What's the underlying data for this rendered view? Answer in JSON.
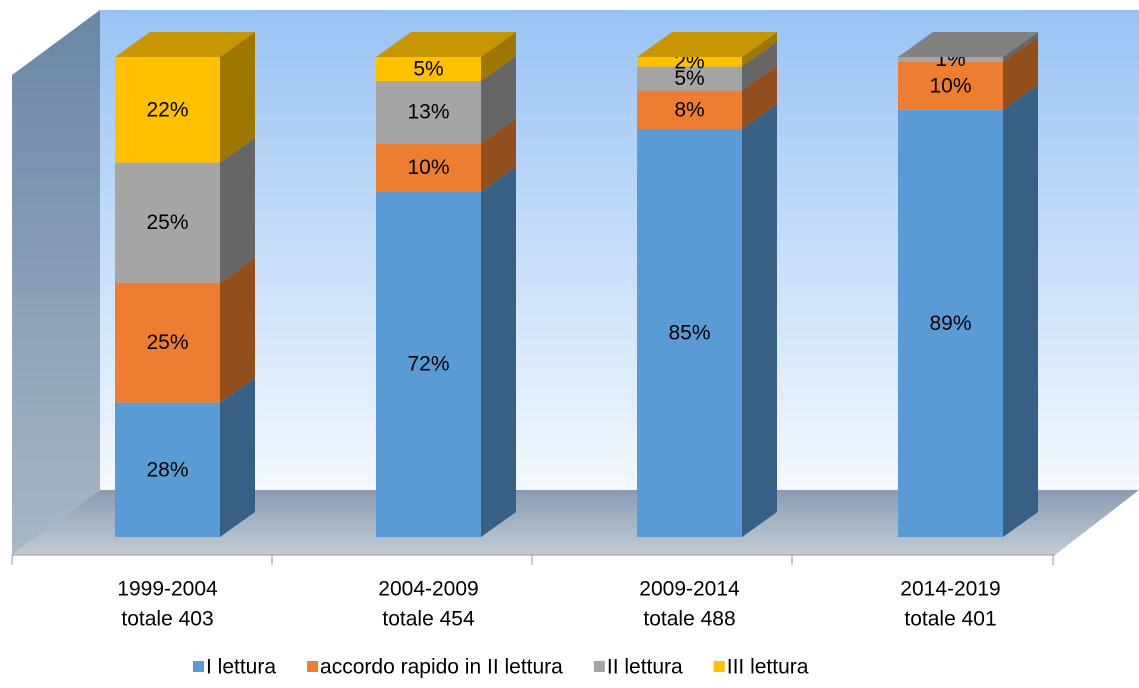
{
  "chart_data": {
    "type": "bar3d_stacked",
    "categories": [
      [
        "1999-2004",
        "totale 403"
      ],
      [
        "2004-2009",
        "totale 454"
      ],
      [
        "2009-2014",
        "totale 488"
      ],
      [
        "2014-2019",
        "totale 401"
      ]
    ],
    "ylim": [
      0,
      100
    ],
    "series": [
      {
        "name": "I lettura",
        "color": "#5b9bd5",
        "values": [
          28,
          72,
          85,
          89
        ],
        "value_labels": [
          "28%",
          "72%",
          "85%",
          "89%"
        ]
      },
      {
        "name": "accordo rapido in II lettura",
        "color": "#ed7d31",
        "values": [
          25,
          10,
          8,
          10
        ],
        "value_labels": [
          "25%",
          "10%",
          "8%",
          "10%"
        ]
      },
      {
        "name": "II lettura",
        "color": "#a5a5a5",
        "values": [
          25,
          13,
          5,
          1
        ],
        "value_labels": [
          "25%",
          "13%",
          "5%",
          "1%"
        ]
      },
      {
        "name": "III lettura",
        "color": "#ffc000",
        "values": [
          22,
          5,
          2,
          null
        ],
        "value_labels": [
          "22%",
          "5%",
          "2%",
          null
        ]
      }
    ],
    "legend": "bottom"
  }
}
